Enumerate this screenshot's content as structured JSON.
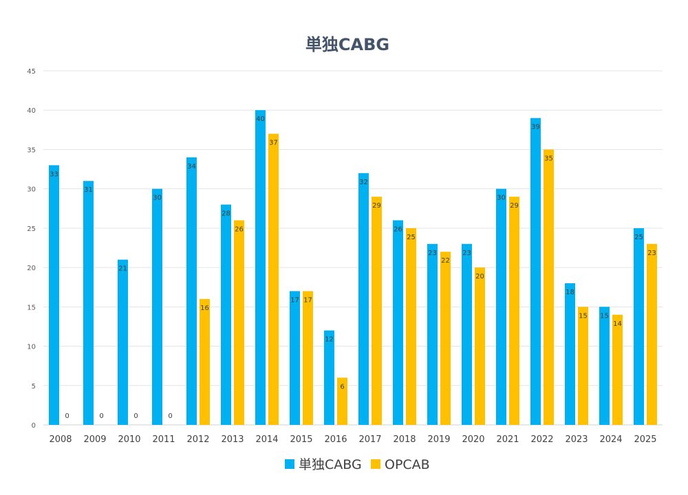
{
  "chart_data": {
    "type": "bar",
    "title": "単独CABG",
    "xlabel": "",
    "ylabel": "",
    "ylim": [
      0,
      45
    ],
    "yticks": [
      0,
      5,
      10,
      15,
      20,
      25,
      30,
      35,
      40,
      45
    ],
    "grid": true,
    "legend_position": "bottom",
    "categories": [
      "2008",
      "2009",
      "2010",
      "2011",
      "2012",
      "2013",
      "2014",
      "2015",
      "2016",
      "2017",
      "2018",
      "2019",
      "2020",
      "2021",
      "2022",
      "2023",
      "2024",
      "2025"
    ],
    "series": [
      {
        "name": "単独CABG",
        "color": "#00B0F0",
        "values": [
          33,
          31,
          21,
          30,
          34,
          28,
          40,
          17,
          12,
          32,
          26,
          23,
          23,
          30,
          39,
          18,
          15,
          25
        ]
      },
      {
        "name": "OPCAB",
        "color": "#FFC000",
        "values": [
          0,
          0,
          0,
          0,
          16,
          26,
          37,
          17,
          6,
          29,
          25,
          22,
          20,
          29,
          35,
          15,
          14,
          23
        ]
      }
    ]
  }
}
